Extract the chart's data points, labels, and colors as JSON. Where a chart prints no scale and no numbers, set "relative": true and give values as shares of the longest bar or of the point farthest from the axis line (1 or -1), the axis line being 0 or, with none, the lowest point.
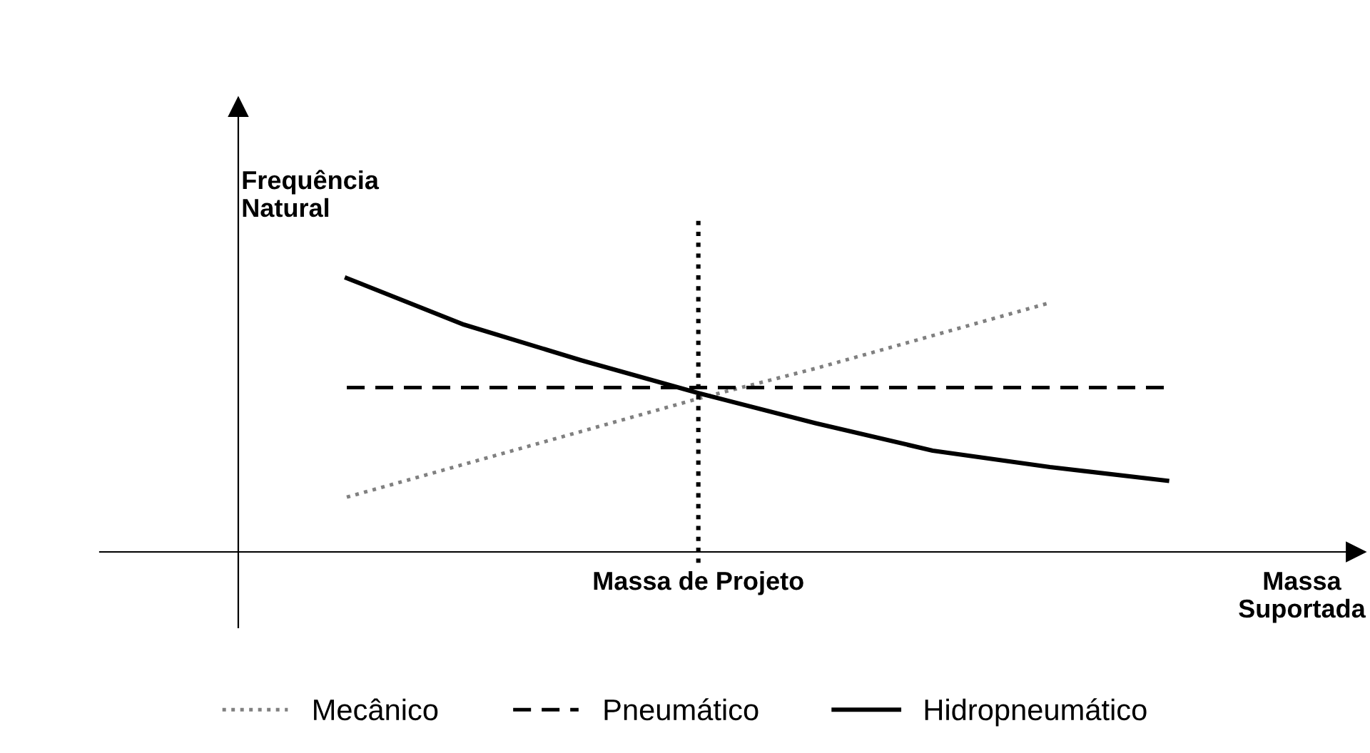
{
  "chart_data": {
    "type": "line",
    "relative": true,
    "xlabel": "Massa Suportada",
    "ylabel": "Frequência Natural",
    "categories": [
      null,
      null,
      null,
      null,
      null,
      null,
      null,
      null
    ],
    "annotations": [
      "Massa de Projeto"
    ],
    "series": [
      {
        "name": "Mecânico",
        "color": "#808080",
        "line_style": "dotted",
        "values": [
          0.2,
          0.32,
          0.44,
          0.56,
          0.67,
          0.79,
          0.91,
          null
        ]
      },
      {
        "name": "Pneumático",
        "color": "#000000",
        "line_style": "dashed",
        "values": [
          0.6,
          0.6,
          0.6,
          0.6,
          0.6,
          0.6,
          0.6,
          0.6
        ]
      },
      {
        "name": "Hidropneumático",
        "color": "#000000",
        "line_style": "solid",
        "values": [
          1.0,
          0.83,
          0.7,
          0.58,
          0.47,
          0.37,
          0.31,
          0.26
        ]
      }
    ],
    "legend": "bottom",
    "marker": "none"
  }
}
